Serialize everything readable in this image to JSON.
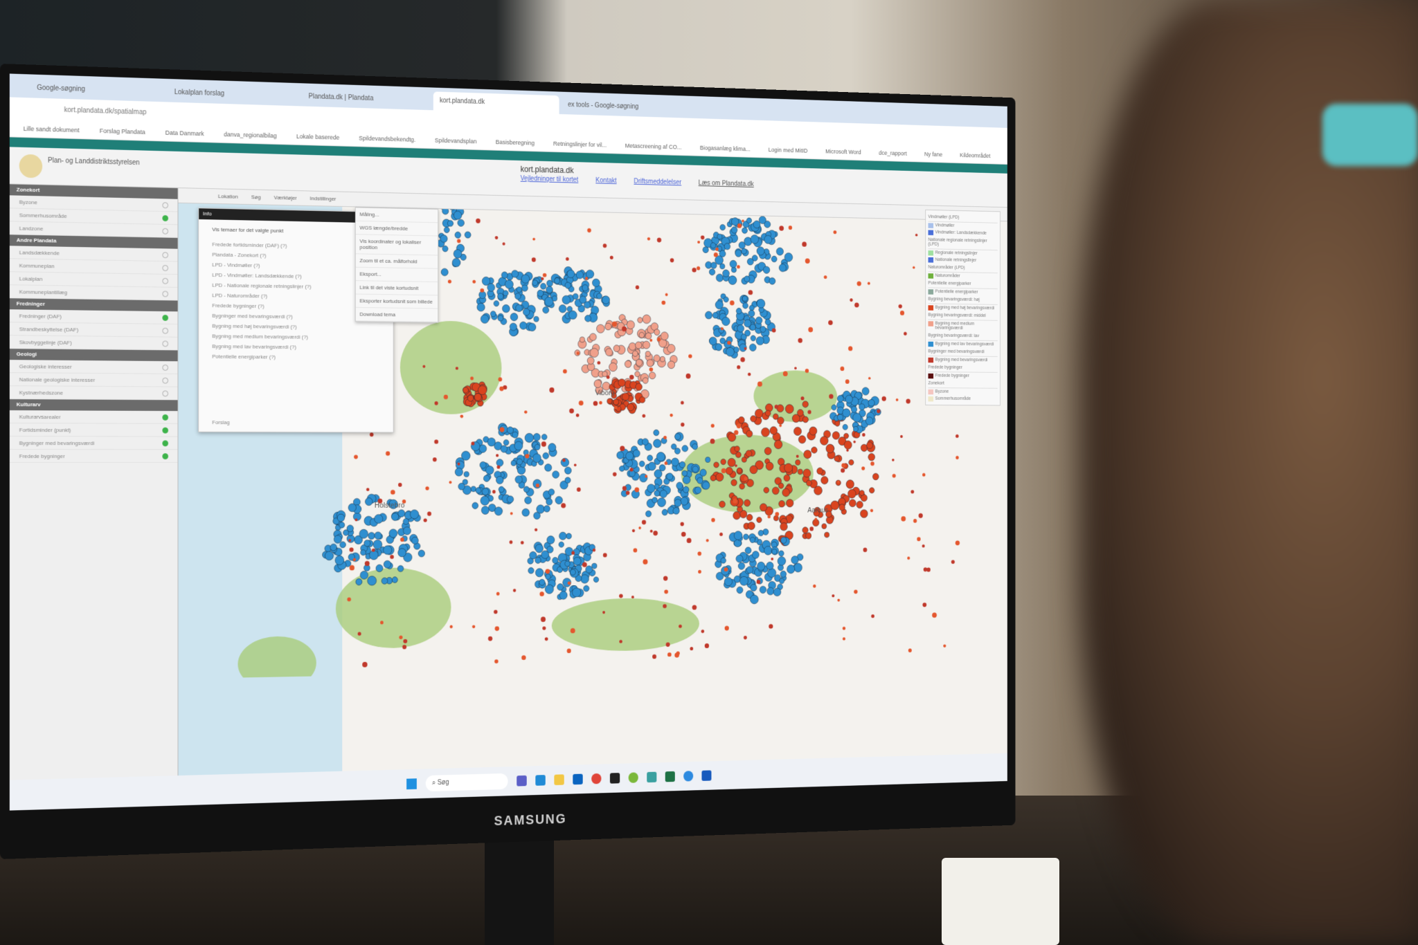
{
  "browser": {
    "tabs": [
      {
        "label": "Google-søgning"
      },
      {
        "label": "Lokalplan forslag"
      },
      {
        "label": "Plandata.dk | Plandata"
      },
      {
        "label": "kort.plandata.dk",
        "active": true
      },
      {
        "label": "ex tools - Google-søgning"
      }
    ],
    "address": "kort.plandata.dk/spatialmap",
    "bookmarks": [
      "Lille sandt dokument",
      "Forslag Plandata",
      "Data Danmark",
      "danva_regionalbilag",
      "Lokale baserede",
      "Spildevandsbekendtg.",
      "Spildevandsplan",
      "Basisberegning",
      "Retningslinjer for vil...",
      "Metascreening af CO...",
      "Biogasanlæg klima...",
      "Login med MitID",
      "Microsoft Word",
      "dce_rapport",
      "Ny fane",
      "Kildeområdet"
    ]
  },
  "header": {
    "site": "kort.plandata.dk",
    "logo_text": "Plan- og Landdistriktsstyrelsen",
    "links": [
      "Vejledninger til kortet",
      "Kontakt",
      "Driftsmeddelelser",
      "Læs om Plandata.dk"
    ]
  },
  "sidebar": {
    "groups": [
      {
        "title": "Zonekort",
        "items": [
          {
            "label": "Byzone",
            "on": false
          },
          {
            "label": "Sommerhusområde",
            "on": true
          },
          {
            "label": "Landzone",
            "on": false
          }
        ]
      },
      {
        "title": "Andre Plandata",
        "items": [
          {
            "label": "Landsdækkende",
            "on": false
          },
          {
            "label": "Kommuneplan",
            "on": false
          },
          {
            "label": "Lokalplan",
            "on": false
          },
          {
            "label": "Kommuneplantillæg",
            "on": false
          }
        ]
      },
      {
        "title": "Fredninger",
        "items": [
          {
            "label": "Fredninger (DAF)",
            "on": true
          },
          {
            "label": "Strandbeskyttelse (DAF)",
            "on": false
          },
          {
            "label": "Skovbyggelinje (DAF)",
            "on": false
          }
        ]
      },
      {
        "title": "Geologi",
        "items": [
          {
            "label": "Geologiske interesser",
            "on": false
          },
          {
            "label": "Nationale geologiske interesser",
            "on": false
          },
          {
            "label": "Kystnærhedszone",
            "on": false
          }
        ]
      },
      {
        "title": "Kulturarv",
        "items": [
          {
            "label": "Kulturarvsarealer",
            "on": true
          },
          {
            "label": "Fortidsminder (punkt)",
            "on": true
          },
          {
            "label": "Bygninger med bevaringsværdi",
            "on": true
          },
          {
            "label": "Fredede bygninger",
            "on": true
          }
        ]
      }
    ]
  },
  "toolbar": {
    "items": [
      "Lokation",
      "Søg",
      "Værktøjer",
      "Indstillinger"
    ]
  },
  "tools_menu": [
    "Måling...",
    "WGS længde/bredde",
    "Vis koordinater og lokaliser position",
    "Zoom til et ca. målforhold",
    "Eksport...",
    "Link til det viste kortudsnit",
    "Eksporter kortudsnit som billede",
    "Download tema"
  ],
  "info_panel": {
    "title": "Info",
    "heading": "Vis temaer for det valgte punkt",
    "rows": [
      "Fredede fortidsminder (DAF) (?)",
      "Plandata - Zonekort (?)",
      "LPD - Vindmøller (?)",
      "LPD - Vindmøller: Landsdækkende (?)",
      "LPD - Nationale regionale retningslinjer (?)",
      "LPD - Naturområder (?)",
      "Fredede bygninger (?)",
      "Bygninger med bevaringsværdi (?)",
      "Bygning med høj bevaringsværdi (?)",
      "Bygning med medium bevaringsværdi (?)",
      "Bygning med lav bevaringsværdi (?)",
      "Potentielle energiparker (?)"
    ],
    "footer": "Forslag"
  },
  "legend": {
    "sections": [
      {
        "title": "Vindmøller (LPD)",
        "items": [
          {
            "label": "Vindmøller",
            "color": "#a8c0ea"
          },
          {
            "label": "Vindmøller: Landsdækkende",
            "color": "#4a6fd8"
          }
        ]
      },
      {
        "title": "Nationale regionale retningslinjer (LPD)",
        "items": [
          {
            "label": "Regionale retningslinjer",
            "color": "#9fe0a0"
          },
          {
            "label": "Nationale retningslinjer",
            "color": "#4a6fd8"
          }
        ]
      },
      {
        "title": "Naturområder (LPD)",
        "items": [
          {
            "label": "Naturområder",
            "color": "#6fb03c"
          }
        ]
      },
      {
        "title": "Potentielle energiparker",
        "items": [
          {
            "label": "Potentielle energiparker",
            "color": "#8aa89a"
          }
        ]
      },
      {
        "title": "Bygning bevaringsværdi: høj",
        "items": [
          {
            "label": "Bygning med høj bevaringsværdi",
            "color": "#d9441f"
          }
        ]
      },
      {
        "title": "Bygning bevaringsværdi: middel",
        "items": [
          {
            "label": "Bygning med medium bevaringsværdi",
            "color": "#f0a08a"
          }
        ]
      },
      {
        "title": "Bygning bevaringsværdi: lav",
        "items": [
          {
            "label": "Bygning med lav bevaringsværdi",
            "color": "#2f8fd0"
          }
        ]
      },
      {
        "title": "Bygninger med bevaringsværdi",
        "items": [
          {
            "label": "Bygning med bevaringsværdi",
            "color": "#c0392b"
          }
        ]
      },
      {
        "title": "Fredede bygninger",
        "items": [
          {
            "label": "Fredede bygninger",
            "color": "#5a0f0f"
          }
        ]
      },
      {
        "title": "Zonekort",
        "items": [
          {
            "label": "Byzone",
            "color": "#f5c6c0"
          },
          {
            "label": "Sommerhusområde",
            "color": "#efe8c8"
          }
        ]
      }
    ]
  },
  "map": {
    "places": [
      "Holstebro",
      "Aarhus",
      "Viborg"
    ]
  },
  "taskbar": {
    "search": "Søg"
  },
  "monitor": {
    "brand": "SAMSUNG"
  },
  "colors": {
    "teal": "#1f7f78",
    "high": "#d9441f",
    "medium": "#f0a08a",
    "low": "#2f8fd0",
    "nature": "#a9cc7a"
  }
}
